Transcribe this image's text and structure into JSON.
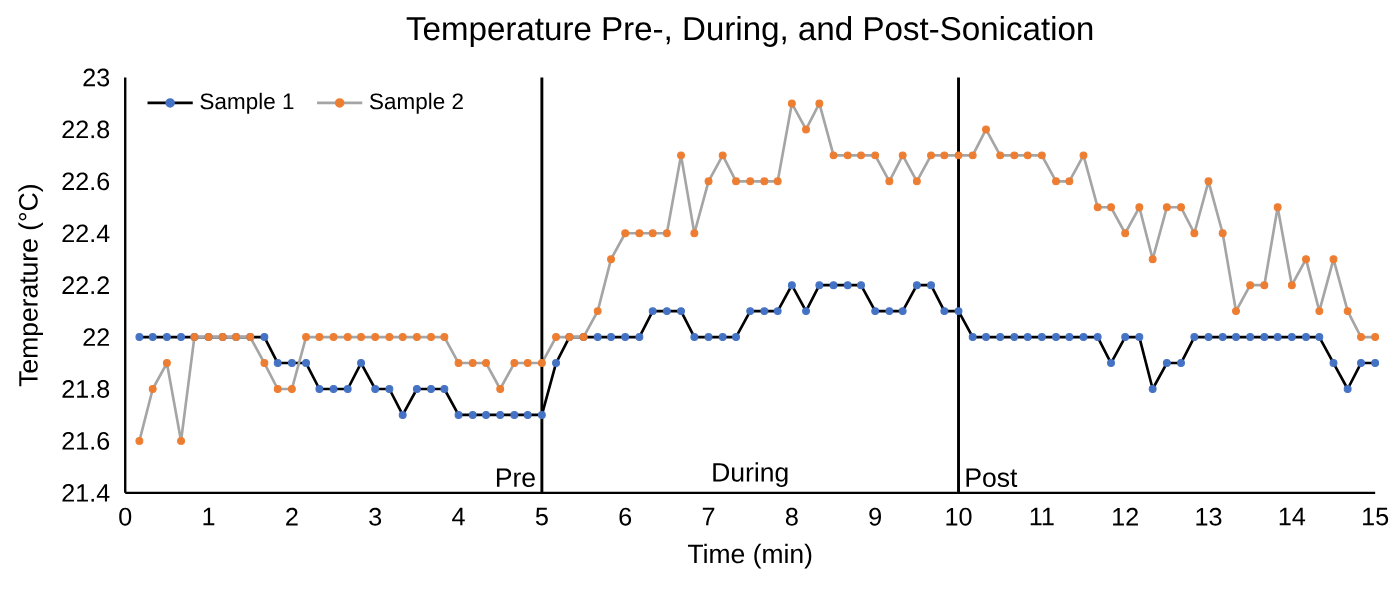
{
  "chart_data": {
    "type": "line",
    "title": "Temperature  Pre-, During, and Post-Sonication",
    "xlabel": "Time (min)",
    "ylabel": "Temperature (°C)",
    "x": [
      0.17,
      0.33,
      0.5,
      0.67,
      0.83,
      1,
      1.17,
      1.33,
      1.5,
      1.67,
      1.83,
      2,
      2.17,
      2.33,
      2.5,
      2.67,
      2.83,
      3,
      3.17,
      3.33,
      3.5,
      3.67,
      3.83,
      4,
      4.17,
      4.33,
      4.5,
      4.67,
      4.83,
      5,
      5.17,
      5.33,
      5.5,
      5.67,
      5.83,
      6,
      6.17,
      6.33,
      6.5,
      6.67,
      6.83,
      7,
      7.17,
      7.33,
      7.5,
      7.67,
      7.83,
      8,
      8.17,
      8.33,
      8.5,
      8.67,
      8.83,
      9,
      9.17,
      9.33,
      9.5,
      9.67,
      9.83,
      10,
      10.17,
      10.33,
      10.5,
      10.67,
      10.83,
      11,
      11.17,
      11.33,
      11.5,
      11.67,
      11.83,
      12,
      12.17,
      12.33,
      12.5,
      12.67,
      12.83,
      13,
      13.17,
      13.33,
      13.5,
      13.67,
      13.83,
      14,
      14.17,
      14.33,
      14.5,
      14.67,
      14.83,
      15
    ],
    "series": [
      {
        "name": "Sample 1",
        "color": "#000000",
        "values": [
          22,
          22,
          22,
          22,
          22,
          22,
          22,
          22,
          22,
          22,
          21.9,
          21.9,
          21.9,
          21.8,
          21.8,
          21.8,
          21.9,
          21.8,
          21.8,
          21.7,
          21.8,
          21.8,
          21.8,
          21.7,
          21.7,
          21.7,
          21.7,
          21.7,
          21.7,
          21.7,
          21.9,
          22,
          22,
          22,
          22,
          22,
          22,
          22.1,
          22.1,
          22.1,
          22,
          22,
          22,
          22,
          22.1,
          22.1,
          22.1,
          22.2,
          22.1,
          22.2,
          22.2,
          22.2,
          22.2,
          22.1,
          22.1,
          22.1,
          22.2,
          22.2,
          22.1,
          22.1,
          22,
          22,
          22,
          22,
          22,
          22,
          22,
          22,
          22,
          22,
          21.9,
          22,
          22,
          21.8,
          21.9,
          21.9,
          22,
          22,
          22,
          22,
          22,
          22,
          22,
          22,
          22,
          22,
          21.9,
          21.8,
          21.9,
          21.9
        ],
        "colors": [
          "#4472c4",
          "#4472c4",
          "#4472c4",
          "#4472c4",
          "#4472c4",
          "#4472c4",
          "#4472c4",
          "#4472c4",
          "#4472c4",
          "#4472c4",
          "#4472c4",
          "#4472c4",
          "#4472c4",
          "#4472c4",
          "#4472c4",
          "#4472c4",
          "#4472c4",
          "#4472c4",
          "#4472c4",
          "#4472c4",
          "#4472c4",
          "#4472c4",
          "#4472c4",
          "#4472c4",
          "#4472c4",
          "#4472c4",
          "#4472c4",
          "#4472c4",
          "#4472c4",
          "#4472c4",
          "#4472c4",
          "#4472c4",
          "#4472c4",
          "#4472c4",
          "#4472c4",
          "#4472c4",
          "#4472c4",
          "#4472c4",
          "#4472c4",
          "#4472c4",
          "#4472c4",
          "#4472c4",
          "#4472c4",
          "#4472c4",
          "#4472c4",
          "#4472c4",
          "#4472c4",
          "#4472c4",
          "#4472c4",
          "#4472c4",
          "#4472c4",
          "#4472c4",
          "#4472c4",
          "#4472c4",
          "#4472c4",
          "#4472c4",
          "#4472c4",
          "#4472c4",
          "#4472c4",
          "#4472c4",
          "#4472c4",
          "#4472c4",
          "#4472c4",
          "#4472c4",
          "#4472c4",
          "#4472c4",
          "#4472c4",
          "#4472c4",
          "#4472c4",
          "#4472c4",
          "#4472c4",
          "#4472c4",
          "#4472c4",
          "#4472c4",
          "#4472c4",
          "#4472c4",
          "#4472c4",
          "#4472c4",
          "#4472c4",
          "#4472c4",
          "#4472c4",
          "#4472c4",
          "#4472c4",
          "#4472c4",
          "#4472c4",
          "#4472c4",
          "#4472c4",
          "#4472c4",
          "#4472c4",
          "#4472c4"
        ]
      },
      {
        "name": "Sample 2",
        "color": "#a5a5a5",
        "values": [
          21.6,
          21.8,
          21.9,
          21.6,
          22,
          22,
          22,
          22,
          22,
          21.9,
          21.8,
          21.8,
          22,
          22,
          22,
          22,
          22,
          22,
          22,
          22,
          22,
          22,
          22,
          21.9,
          21.9,
          21.9,
          21.8,
          21.9,
          21.9,
          21.9,
          22,
          22,
          22,
          22.1,
          22.3,
          22.4,
          22.4,
          22.4,
          22.4,
          22.7,
          22.4,
          22.6,
          22.7,
          22.6,
          22.6,
          22.6,
          22.6,
          22.9,
          22.8,
          22.9,
          22.7,
          22.7,
          22.7,
          22.7,
          22.6,
          22.7,
          22.6,
          22.7,
          22.7,
          22.7,
          22.7,
          22.8,
          22.7,
          22.7,
          22.7,
          22.7,
          22.6,
          22.6,
          22.7,
          22.5,
          22.5,
          22.4,
          22.5,
          22.3,
          22.5,
          22.5,
          22.4,
          22.6,
          22.4,
          22.1,
          22.2,
          22.2,
          22.5,
          22.2,
          22.3,
          22.1,
          22.3,
          22.1,
          22,
          22
        ],
        "colors": [
          "#ed7d31",
          "#ed7d31",
          "#ed7d31",
          "#ed7d31",
          "#ed7d31",
          "#ed7d31",
          "#ed7d31",
          "#ed7d31",
          "#ed7d31",
          "#ed7d31",
          "#ed7d31",
          "#ed7d31",
          "#ed7d31",
          "#ed7d31",
          "#ed7d31",
          "#ed7d31",
          "#ed7d31",
          "#ed7d31",
          "#ed7d31",
          "#ed7d31",
          "#ed7d31",
          "#ed7d31",
          "#ed7d31",
          "#ed7d31",
          "#ed7d31",
          "#ed7d31",
          "#ed7d31",
          "#ed7d31",
          "#ed7d31",
          "#ed7d31",
          "#ed7d31",
          "#ed7d31",
          "#ed7d31",
          "#ed7d31",
          "#ed7d31",
          "#ed7d31",
          "#ed7d31",
          "#ed7d31",
          "#ed7d31",
          "#ed7d31",
          "#ed7d31",
          "#ed7d31",
          "#ed7d31",
          "#ed7d31",
          "#ed7d31",
          "#ed7d31",
          "#ed7d31",
          "#ed7d31",
          "#ed7d31",
          "#ed7d31",
          "#ed7d31",
          "#ed7d31",
          "#ed7d31",
          "#ed7d31",
          "#ed7d31",
          "#ed7d31",
          "#ed7d31",
          "#ed7d31",
          "#ed7d31",
          "#ed7d31",
          "#ed7d31",
          "#ed7d31",
          "#ed7d31",
          "#ed7d31",
          "#ed7d31",
          "#ed7d31",
          "#ed7d31",
          "#ed7d31",
          "#ed7d31",
          "#ed7d31",
          "#ed7d31",
          "#ed7d31",
          "#ed7d31",
          "#ed7d31",
          "#ed7d31",
          "#ed7d31",
          "#ed7d31",
          "#ed7d31",
          "#ed7d31",
          "#ed7d31",
          "#ed7d31",
          "#ed7d31",
          "#ed7d31",
          "#ed7d31",
          "#ed7d31",
          "#ed7d31",
          "#ed7d31",
          "#ed7d31",
          "#ed7d31",
          "#ed7d31"
        ]
      }
    ],
    "xlim": [
      0,
      15
    ],
    "xticks": [
      0,
      1,
      2,
      3,
      4,
      5,
      6,
      7,
      8,
      9,
      10,
      11,
      12,
      13,
      14,
      15
    ],
    "ylim": [
      21.4,
      23
    ],
    "yticks": [
      21.4,
      21.6,
      21.8,
      22,
      22.2,
      22.4,
      22.6,
      22.8,
      23
    ],
    "ref_lines": [
      {
        "axis": "x",
        "value": 5,
        "label": "Pre",
        "color": "#000000"
      },
      {
        "axis": "x",
        "value": 10,
        "label": "Post",
        "color": "#000000"
      }
    ],
    "annotations": [
      "During"
    ],
    "marker": "circle",
    "legend": "top left",
    "grid": false
  }
}
